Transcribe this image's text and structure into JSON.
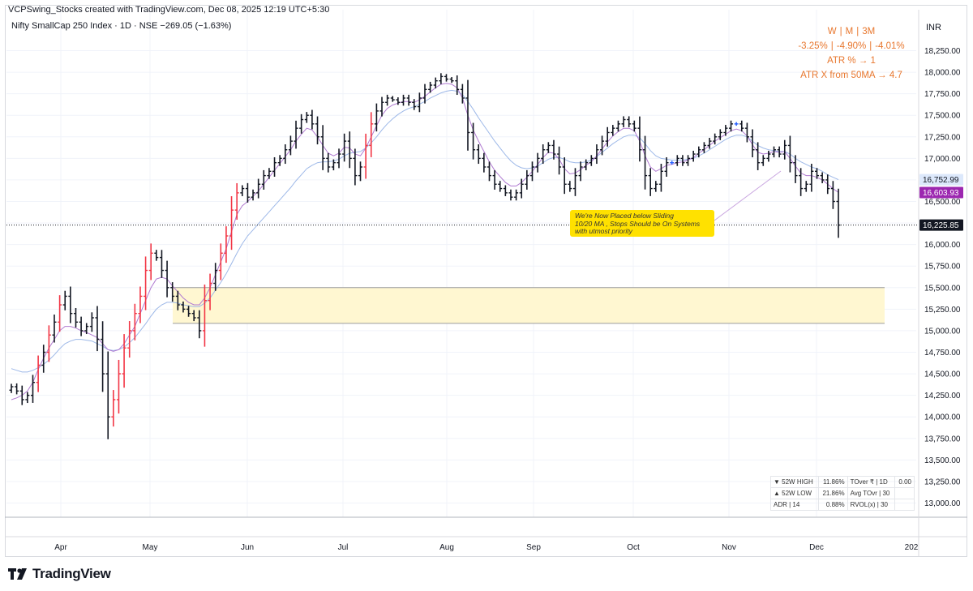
{
  "header": {
    "credit": "VCPSwing_Stocks created with TradingView.com, Dec 08, 2025 12:19 UTC+5:30",
    "symbol": "Nifty SmallCap 250 Index · 1D · NSE   −269.05 (−1.63%)",
    "currency": "INR"
  },
  "performance": {
    "labels": [
      "W",
      "M",
      "3M"
    ],
    "values": [
      "-3.25%",
      "-4.90%",
      "-4.01%"
    ],
    "atr": "ATR % → 1",
    "atr_x": "ATR X from 50MA → 4.7"
  },
  "annotation": {
    "lines": [
      "We're Now Placed below Sliding",
      "10/20 MA , Stops Should be  On Systems",
      "with utmost priority"
    ]
  },
  "stats_table": {
    "rows": [
      [
        "▼ 52W HIGH",
        "11.86%",
        "TOver ₹ | 1D",
        "0.00"
      ],
      [
        "▲ 52W LOW",
        "21.86%",
        "Avg TOvr | 30",
        ""
      ],
      [
        "ADR | 14",
        "0.88%",
        "RVOL(x) | 30",
        ""
      ]
    ]
  },
  "branding": {
    "logo_text": "TradingView"
  },
  "colors": {
    "bar": "#131722",
    "up_bar": "#2962ff",
    "down_bar": "#f23645",
    "ma10": "#b07ad1",
    "ma20": "#9db8e8",
    "zone_fill": "#fff7d1",
    "zone_border": "#9c9c9c",
    "label_ma20": "#dce8fb",
    "label_ma10": "#9c27b0",
    "label_last": "#131722"
  },
  "chart_data": {
    "type": "ohlc-bar",
    "ylim": [
      12850,
      18600
    ],
    "y_ticks": [
      13000,
      13250,
      13500,
      13750,
      14000,
      14250,
      14500,
      14750,
      15000,
      15250,
      15500,
      15750,
      16000,
      16250,
      16500,
      16750,
      17000,
      17250,
      17500,
      17750,
      18000,
      18250
    ],
    "y_tick_labels": [
      "13,000.00",
      "13,250.00",
      "13,500.00",
      "13,750.00",
      "14,000.00",
      "14,250.00",
      "14,500.00",
      "14,750.00",
      "15,000.00",
      "15,250.00",
      "15,500.00",
      "15,750.00",
      "16,000.00",
      "16,250.00",
      "16,500.00",
      "16,750.00",
      "17,000.00",
      "17,250.00",
      "17,500.00",
      "17,750.00",
      "18,000.00",
      "18,250.00"
    ],
    "month_labels": [
      "Apr",
      "May",
      "Jun",
      "Jul",
      "Aug",
      "Sep",
      "Oct",
      "Nov",
      "Dec",
      "202"
    ],
    "price_labels": {
      "ma20": {
        "value": 16752.99,
        "text": "16,752.99"
      },
      "ma10": {
        "value": 16603.93,
        "text": "16,603.93"
      },
      "last": {
        "value": 16225.85,
        "text": "16,225.85"
      }
    },
    "support_zone": {
      "low": 15085,
      "high": 15500
    },
    "series": [
      {
        "name": "",
        "values": [
          14350,
          14300,
          14200,
          14250,
          14400,
          14600,
          14750,
          14950,
          15100,
          15300,
          15400,
          15200,
          15100,
          15000,
          15050,
          15150,
          14900,
          14500,
          14000,
          14200,
          14500,
          14800,
          15000,
          15200,
          15400,
          15700,
          15900,
          15850,
          15700,
          15500,
          15400,
          15300,
          15250,
          15200,
          15150,
          15000,
          15350,
          15550,
          15700,
          15900,
          16100,
          16400,
          16600,
          16650,
          16550,
          16600,
          16700,
          16800,
          16850,
          16950,
          17000,
          17100,
          17200,
          17350,
          17450,
          17500,
          17400,
          17250,
          17000,
          16900,
          16950,
          17050,
          17200,
          17000,
          16800,
          16900,
          17150,
          17400,
          17550,
          17650,
          17700,
          17680,
          17650,
          17700,
          17650,
          17600,
          17700,
          17800,
          17850,
          17900,
          17950,
          17920,
          17900,
          17800,
          17700,
          17300,
          17100,
          17000,
          16900,
          16800,
          16700,
          16650,
          16600,
          16550,
          16600,
          16700,
          16800,
          16900,
          17000,
          17100,
          17150,
          17050,
          16900,
          16700,
          16650,
          16800,
          16900,
          16950,
          17000,
          17100,
          17200,
          17300,
          17350,
          17400,
          17450,
          17400,
          17350,
          17100,
          16800,
          16650,
          16700,
          16850,
          16950,
          16950,
          17000,
          16950,
          17000,
          17050,
          17100,
          17150,
          17200,
          17250,
          17300,
          17350,
          17400,
          17400,
          17350,
          17250,
          17100,
          16950,
          17000,
          17050,
          17100,
          17050,
          17150,
          16950,
          16800,
          16650,
          16700,
          16850,
          16800,
          16750,
          16650,
          16500,
          16226
        ]
      },
      {
        "name": "",
        "values": [
          14200,
          14220,
          14250,
          14300,
          14400,
          14550,
          14680,
          14800,
          14900,
          15000,
          15050,
          15050,
          15030,
          15000,
          14980,
          14950,
          14920,
          14850,
          14780,
          14760,
          14780,
          14850,
          14950,
          15050,
          15200,
          15350,
          15500,
          15600,
          15620,
          15600,
          15520,
          15450,
          15380,
          15330,
          15300,
          15300,
          15380,
          15500,
          15650,
          15800,
          15950,
          16150,
          16350,
          16450,
          16500,
          16560,
          16620,
          16700,
          16780,
          16860,
          16940,
          17020,
          17100,
          17200,
          17280,
          17350,
          17330,
          17250,
          17150,
          17060,
          17030,
          17060,
          17130,
          17120,
          17050,
          17030,
          17120,
          17250,
          17380,
          17500,
          17580,
          17620,
          17640,
          17660,
          17660,
          17650,
          17680,
          17720,
          17770,
          17820,
          17860,
          17870,
          17860,
          17820,
          17700,
          17500,
          17330,
          17200,
          17080,
          16960,
          16860,
          16790,
          16720,
          16680,
          16680,
          16720,
          16780,
          16850,
          16930,
          17010,
          17070,
          17060,
          16990,
          16880,
          16820,
          16830,
          16870,
          16920,
          16960,
          17030,
          17110,
          17190,
          17260,
          17310,
          17350,
          17350,
          17320,
          17200,
          17030,
          16900,
          16850,
          16880,
          16920,
          16930,
          16950,
          16960,
          16980,
          17010,
          17060,
          17100,
          17150,
          17200,
          17240,
          17280,
          17320,
          17340,
          17320,
          17260,
          17160,
          17070,
          17050,
          17060,
          17080,
          17070,
          17080,
          17000,
          16910,
          16830,
          16800,
          16800,
          16780,
          16750,
          16700,
          16650,
          16604
        ]
      },
      {
        "name": "",
        "values": [
          14560,
          14540,
          14520,
          14520,
          14540,
          14570,
          14610,
          14660,
          14720,
          14790,
          14850,
          14880,
          14900,
          14900,
          14890,
          14880,
          14850,
          14820,
          14780,
          14770,
          14780,
          14810,
          14860,
          14920,
          15000,
          15080,
          15170,
          15250,
          15300,
          15330,
          15330,
          15320,
          15300,
          15290,
          15280,
          15280,
          15320,
          15380,
          15470,
          15560,
          15660,
          15780,
          15900,
          16010,
          16100,
          16170,
          16240,
          16310,
          16380,
          16450,
          16520,
          16590,
          16660,
          16740,
          16810,
          16880,
          16920,
          16950,
          16960,
          16960,
          16970,
          16990,
          17030,
          17060,
          17070,
          17080,
          17120,
          17180,
          17250,
          17330,
          17400,
          17460,
          17510,
          17550,
          17580,
          17600,
          17630,
          17660,
          17700,
          17730,
          17760,
          17780,
          17790,
          17780,
          17740,
          17660,
          17570,
          17470,
          17380,
          17290,
          17200,
          17120,
          17040,
          16970,
          16920,
          16890,
          16880,
          16890,
          16910,
          16950,
          16990,
          17010,
          17010,
          16990,
          16960,
          16950,
          16950,
          16960,
          16980,
          17020,
          17070,
          17120,
          17170,
          17210,
          17250,
          17270,
          17270,
          17240,
          17170,
          17090,
          17030,
          17000,
          16990,
          16980,
          16980,
          16980,
          16990,
          17000,
          17030,
          17060,
          17100,
          17140,
          17180,
          17220,
          17250,
          17270,
          17270,
          17250,
          17200,
          17150,
          17120,
          17100,
          17090,
          17080,
          17080,
          17050,
          17000,
          16960,
          16930,
          16900,
          16880,
          16850,
          16810,
          16780,
          16753
        ]
      }
    ]
  }
}
